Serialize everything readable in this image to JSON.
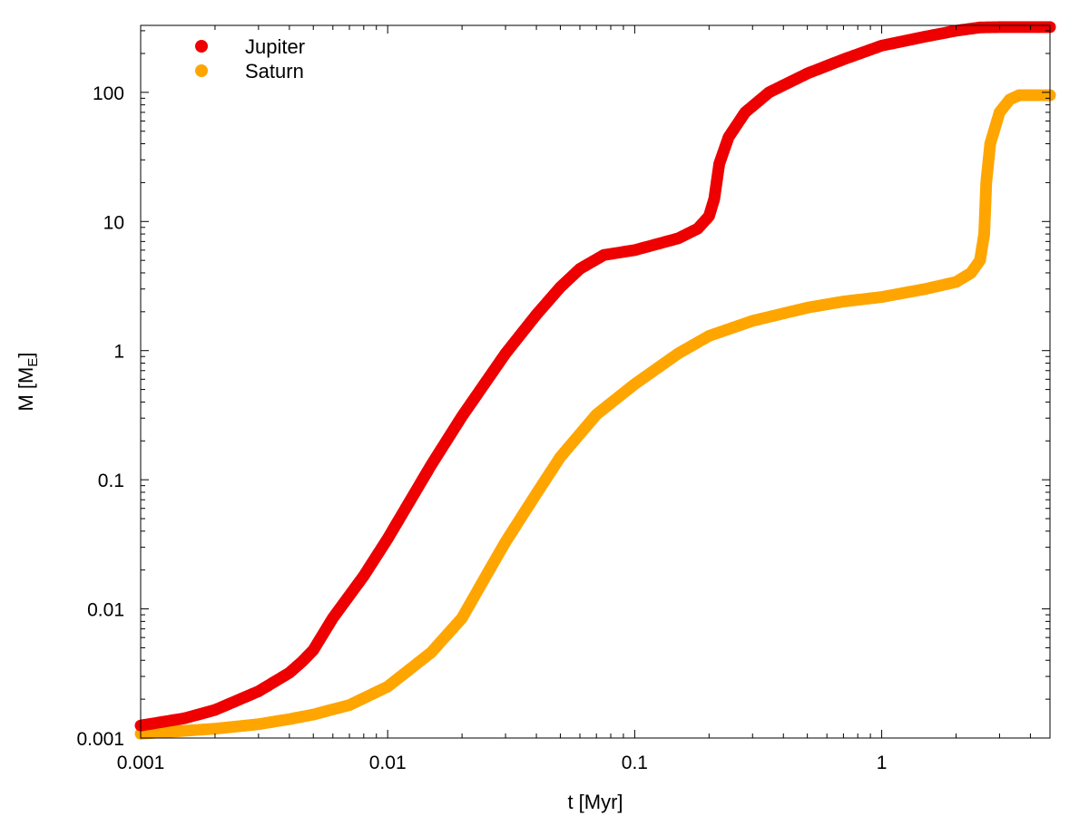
{
  "chart_data": {
    "type": "scatter",
    "title": "",
    "xlabel": "t [Myr]",
    "ylabel": {
      "main": "M [M",
      "sub": "E",
      "close": "]"
    },
    "xscale": "log",
    "yscale": "log",
    "xlim": [
      0.001,
      4.8
    ],
    "ylim": [
      0.001,
      330
    ],
    "x_ticks": [
      {
        "value": 0.001,
        "label": "0.001"
      },
      {
        "value": 0.01,
        "label": "0.01"
      },
      {
        "value": 0.1,
        "label": "0.1"
      },
      {
        "value": 1,
        "label": "1"
      }
    ],
    "y_ticks": [
      {
        "value": 0.001,
        "label": "0.001"
      },
      {
        "value": 0.01,
        "label": "0.01"
      },
      {
        "value": 0.1,
        "label": "0.1"
      },
      {
        "value": 1,
        "label": "1"
      },
      {
        "value": 10,
        "label": "10"
      },
      {
        "value": 100,
        "label": "100"
      }
    ],
    "grid": false,
    "legend_position": "top-left",
    "series": [
      {
        "name": "Jupiter",
        "color": "#ee0000",
        "points": [
          [
            0.001,
            0.00125
          ],
          [
            0.0015,
            0.00142
          ],
          [
            0.002,
            0.00165
          ],
          [
            0.003,
            0.0023
          ],
          [
            0.004,
            0.0032
          ],
          [
            0.0045,
            0.0039
          ],
          [
            0.005,
            0.0048
          ],
          [
            0.006,
            0.0085
          ],
          [
            0.008,
            0.018
          ],
          [
            0.01,
            0.035
          ],
          [
            0.015,
            0.13
          ],
          [
            0.02,
            0.31
          ],
          [
            0.03,
            0.95
          ],
          [
            0.04,
            1.9
          ],
          [
            0.05,
            3.1
          ],
          [
            0.06,
            4.3
          ],
          [
            0.075,
            5.5
          ],
          [
            0.1,
            6.0
          ],
          [
            0.15,
            7.4
          ],
          [
            0.18,
            8.8
          ],
          [
            0.2,
            11
          ],
          [
            0.21,
            15
          ],
          [
            0.22,
            28
          ],
          [
            0.24,
            45
          ],
          [
            0.28,
            70
          ],
          [
            0.35,
            100
          ],
          [
            0.5,
            140
          ],
          [
            0.7,
            180
          ],
          [
            1.0,
            230
          ],
          [
            1.5,
            270
          ],
          [
            2.0,
            300
          ],
          [
            2.5,
            318
          ],
          [
            3.0,
            320
          ],
          [
            4.8,
            320
          ]
        ]
      },
      {
        "name": "Saturn",
        "color": "#ffa500",
        "points": [
          [
            0.001,
            0.00108
          ],
          [
            0.002,
            0.00118
          ],
          [
            0.003,
            0.00128
          ],
          [
            0.004,
            0.0014
          ],
          [
            0.005,
            0.00152
          ],
          [
            0.007,
            0.0018
          ],
          [
            0.01,
            0.0025
          ],
          [
            0.015,
            0.0046
          ],
          [
            0.02,
            0.0085
          ],
          [
            0.025,
            0.018
          ],
          [
            0.03,
            0.033
          ],
          [
            0.04,
            0.078
          ],
          [
            0.05,
            0.15
          ],
          [
            0.07,
            0.32
          ],
          [
            0.1,
            0.55
          ],
          [
            0.15,
            0.95
          ],
          [
            0.2,
            1.3
          ],
          [
            0.3,
            1.7
          ],
          [
            0.5,
            2.15
          ],
          [
            0.7,
            2.4
          ],
          [
            1.0,
            2.6
          ],
          [
            1.5,
            3.0
          ],
          [
            2.0,
            3.4
          ],
          [
            2.3,
            4.0
          ],
          [
            2.5,
            5.0
          ],
          [
            2.6,
            8.0
          ],
          [
            2.65,
            20
          ],
          [
            2.75,
            40
          ],
          [
            3.0,
            70
          ],
          [
            3.3,
            88
          ],
          [
            3.6,
            95
          ],
          [
            4.8,
            95
          ]
        ]
      }
    ]
  }
}
